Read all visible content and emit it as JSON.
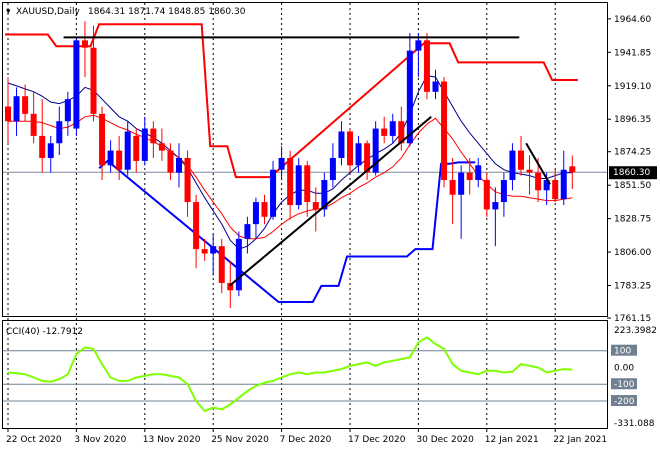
{
  "header": {
    "symbol": "XAUUSD,Daily",
    "ohlc": "1864.31 1871.74 1848.85 1860.30"
  },
  "price_badge": {
    "value": "1860.30",
    "color": "#000000",
    "text_color": "#ffffff"
  },
  "colors": {
    "bull": "#0000ff",
    "bear": "#ff0000",
    "ma_fast": "#00008b",
    "ma_slow": "#ff0000",
    "channel_upper": "#ff0000",
    "channel_lower": "#0000ff",
    "trendline": "#000000",
    "cci": "#7fff00",
    "level_line": "#708090",
    "grid": "#000000"
  },
  "chart_data": [
    {
      "type": "candlestick",
      "title": "XAUUSD,Daily",
      "ylim": [
        1761.15,
        1972.0
      ],
      "y_ticks": [
        "1964.60",
        "1941.85",
        "1919.10",
        "1896.35",
        "1874.25",
        "1851.50",
        "1828.75",
        "1806.00",
        "1783.25",
        "1761.15"
      ],
      "x_ticks": [
        "22 Oct 2020",
        "3 Nov 2020",
        "13 Nov 2020",
        "25 Nov 2020",
        "7 Dec 2020",
        "17 Dec 2020",
        "30 Dec 2020",
        "12 Jan 2021",
        "22 Jan 2021"
      ],
      "x_tick_bar_index": [
        0,
        8,
        16,
        24,
        32,
        40,
        48,
        56,
        64
      ],
      "candles": [
        [
          1905,
          1925,
          1880,
          1895
        ],
        [
          1895,
          1918,
          1885,
          1912
        ],
        [
          1912,
          1920,
          1895,
          1900
        ],
        [
          1900,
          1915,
          1880,
          1885
        ],
        [
          1885,
          1910,
          1860,
          1870
        ],
        [
          1870,
          1885,
          1860,
          1880
        ],
        [
          1880,
          1905,
          1872,
          1895
        ],
        [
          1895,
          1915,
          1885,
          1910
        ],
        [
          1890,
          1952,
          1885,
          1950
        ],
        [
          1950,
          1963,
          1925,
          1945
        ],
        [
          1945,
          1960,
          1895,
          1900
        ],
        [
          1900,
          1905,
          1855,
          1865
        ],
        [
          1865,
          1882,
          1860,
          1875
        ],
        [
          1875,
          1885,
          1855,
          1862
        ],
        [
          1862,
          1895,
          1858,
          1888
        ],
        [
          1885,
          1890,
          1860,
          1868
        ],
        [
          1868,
          1898,
          1865,
          1890
        ],
        [
          1890,
          1895,
          1870,
          1880
        ],
        [
          1880,
          1890,
          1868,
          1875
        ],
        [
          1875,
          1880,
          1855,
          1860
        ],
        [
          1860,
          1880,
          1850,
          1870
        ],
        [
          1870,
          1875,
          1830,
          1840
        ],
        [
          1840,
          1845,
          1795,
          1808
        ],
        [
          1808,
          1815,
          1800,
          1805
        ],
        [
          1805,
          1818,
          1790,
          1810
        ],
        [
          1810,
          1815,
          1778,
          1785
        ],
        [
          1785,
          1800,
          1768,
          1780
        ],
        [
          1780,
          1820,
          1776,
          1815
        ],
        [
          1815,
          1830,
          1805,
          1825
        ],
        [
          1825,
          1843,
          1815,
          1840
        ],
        [
          1840,
          1845,
          1825,
          1830
        ],
        [
          1830,
          1868,
          1828,
          1862
        ],
        [
          1862,
          1878,
          1855,
          1870
        ],
        [
          1870,
          1875,
          1828,
          1838
        ],
        [
          1838,
          1870,
          1835,
          1865
        ],
        [
          1865,
          1868,
          1830,
          1840
        ],
        [
          1840,
          1850,
          1820,
          1835
        ],
        [
          1835,
          1860,
          1830,
          1855
        ],
        [
          1855,
          1880,
          1850,
          1870
        ],
        [
          1870,
          1895,
          1865,
          1888
        ],
        [
          1888,
          1890,
          1860,
          1865
        ],
        [
          1865,
          1885,
          1860,
          1880
        ],
        [
          1880,
          1882,
          1855,
          1860
        ],
        [
          1860,
          1895,
          1858,
          1890
        ],
        [
          1890,
          1898,
          1880,
          1885
        ],
        [
          1885,
          1900,
          1880,
          1895
        ],
        [
          1895,
          1905,
          1875,
          1880
        ],
        [
          1880,
          1955,
          1878,
          1943
        ],
        [
          1943,
          1955,
          1925,
          1950
        ],
        [
          1950,
          1955,
          1910,
          1915
        ],
        [
          1915,
          1930,
          1910,
          1922
        ],
        [
          1922,
          1925,
          1850,
          1855
        ],
        [
          1855,
          1870,
          1825,
          1845
        ],
        [
          1845,
          1865,
          1815,
          1860
        ],
        [
          1860,
          1870,
          1845,
          1855
        ],
        [
          1855,
          1870,
          1850,
          1865
        ],
        [
          1855,
          1860,
          1830,
          1835
        ],
        [
          1835,
          1850,
          1810,
          1840
        ],
        [
          1840,
          1860,
          1830,
          1855
        ],
        [
          1855,
          1880,
          1848,
          1875
        ],
        [
          1875,
          1885,
          1858,
          1862
        ],
        [
          1862,
          1872,
          1845,
          1860
        ],
        [
          1860,
          1870,
          1840,
          1848
        ],
        [
          1848,
          1860,
          1838,
          1855
        ],
        [
          1855,
          1862,
          1840,
          1842
        ],
        [
          1842,
          1875,
          1838,
          1862
        ],
        [
          1864.31,
          1871.74,
          1848.85,
          1860.3
        ]
      ],
      "overlays": [
        {
          "name": "ma_fast",
          "values": [
            1921,
            1919,
            1917,
            1915,
            1912,
            1908,
            1907,
            1909,
            1912,
            1918,
            1916,
            1910,
            1904,
            1898,
            1895,
            1890,
            1887,
            1884,
            1880,
            1875,
            1870,
            1863,
            1853,
            1843,
            1834,
            1825,
            1814,
            1808,
            1810,
            1815,
            1822,
            1832,
            1840,
            1845,
            1848,
            1848,
            1846,
            1846,
            1849,
            1855,
            1860,
            1865,
            1869,
            1873,
            1876,
            1880,
            1887,
            1900,
            1915,
            1926,
            1925,
            1915,
            1905,
            1895,
            1887,
            1880,
            1873,
            1866,
            1862,
            1860,
            1859,
            1858,
            1856,
            1856,
            1858,
            1860,
            1860
          ]
        },
        {
          "name": "ma_slow",
          "values": [
            1895,
            1895,
            1895,
            1895,
            1894,
            1892,
            1890,
            1891,
            1894,
            1898,
            1899,
            1897,
            1894,
            1891,
            1889,
            1886,
            1884,
            1881,
            1878,
            1874,
            1870,
            1865,
            1857,
            1848,
            1840,
            1832,
            1823,
            1817,
            1815,
            1815,
            1816,
            1820,
            1825,
            1829,
            1832,
            1834,
            1835,
            1836,
            1839,
            1843,
            1846,
            1850,
            1853,
            1857,
            1860,
            1864,
            1870,
            1879,
            1887,
            1893,
            1897,
            1890,
            1883,
            1874,
            1866,
            1858,
            1852,
            1847,
            1845,
            1844,
            1844,
            1843,
            1842,
            1841,
            1841,
            1842,
            1843
          ]
        }
      ],
      "channel": {
        "upper": [
          [
            0,
            1954
          ],
          [
            5,
            1954
          ],
          [
            6,
            1946
          ],
          [
            10,
            1946
          ],
          [
            11,
            1961
          ],
          [
            23,
            1961
          ],
          [
            24,
            1878
          ],
          [
            26,
            1878
          ],
          [
            27,
            1857
          ],
          [
            31,
            1857
          ],
          [
            49,
            1948
          ],
          [
            52,
            1948
          ],
          [
            53,
            1935
          ],
          [
            63,
            1935
          ],
          [
            64,
            1923
          ],
          [
            67,
            1923
          ]
        ],
        "lower": [
          [
            11,
            1863
          ],
          [
            12,
            1868
          ],
          [
            32,
            1772
          ],
          [
            36,
            1772
          ],
          [
            37,
            1783
          ],
          [
            39,
            1783
          ],
          [
            40,
            1803
          ],
          [
            47,
            1803
          ],
          [
            48,
            1808
          ],
          [
            48,
            1808
          ],
          [
            49,
            1808
          ],
          [
            50,
            1808
          ],
          [
            51,
            1866
          ],
          [
            52,
            1866
          ],
          [
            53,
            1867
          ],
          [
            55,
            1867
          ]
        ]
      },
      "trendlines": [
        [
          [
            6.5,
            1952
          ],
          [
            59.8,
            1952
          ]
        ],
        [
          [
            25.9,
            1783
          ],
          [
            49.5,
            1898
          ]
        ],
        [
          [
            60.6,
            1880
          ],
          [
            63.4,
            1852
          ]
        ]
      ]
    },
    {
      "type": "line",
      "title": "CCI(40) -12.7912",
      "ylim": [
        -331.088,
        223.3982
      ],
      "y_ticks": [
        "223.3982",
        "100",
        "0.00",
        "-100",
        "-200",
        "-331.088"
      ],
      "levels": [
        100,
        -100,
        -200
      ],
      "values": [
        -30,
        -35,
        -40,
        -60,
        -80,
        -85,
        -70,
        -40,
        80,
        120,
        110,
        20,
        -60,
        -80,
        -80,
        -60,
        -50,
        -40,
        -40,
        -50,
        -60,
        -100,
        -200,
        -260,
        -240,
        -250,
        -220,
        -180,
        -140,
        -110,
        -90,
        -80,
        -60,
        -40,
        -30,
        -40,
        -30,
        -30,
        -20,
        -10,
        10,
        20,
        30,
        10,
        30,
        40,
        50,
        60,
        150,
        180,
        140,
        110,
        20,
        -20,
        -30,
        -40,
        -20,
        -20,
        -30,
        -25,
        20,
        10,
        0,
        -30,
        -20,
        -10,
        -12.79
      ]
    }
  ]
}
